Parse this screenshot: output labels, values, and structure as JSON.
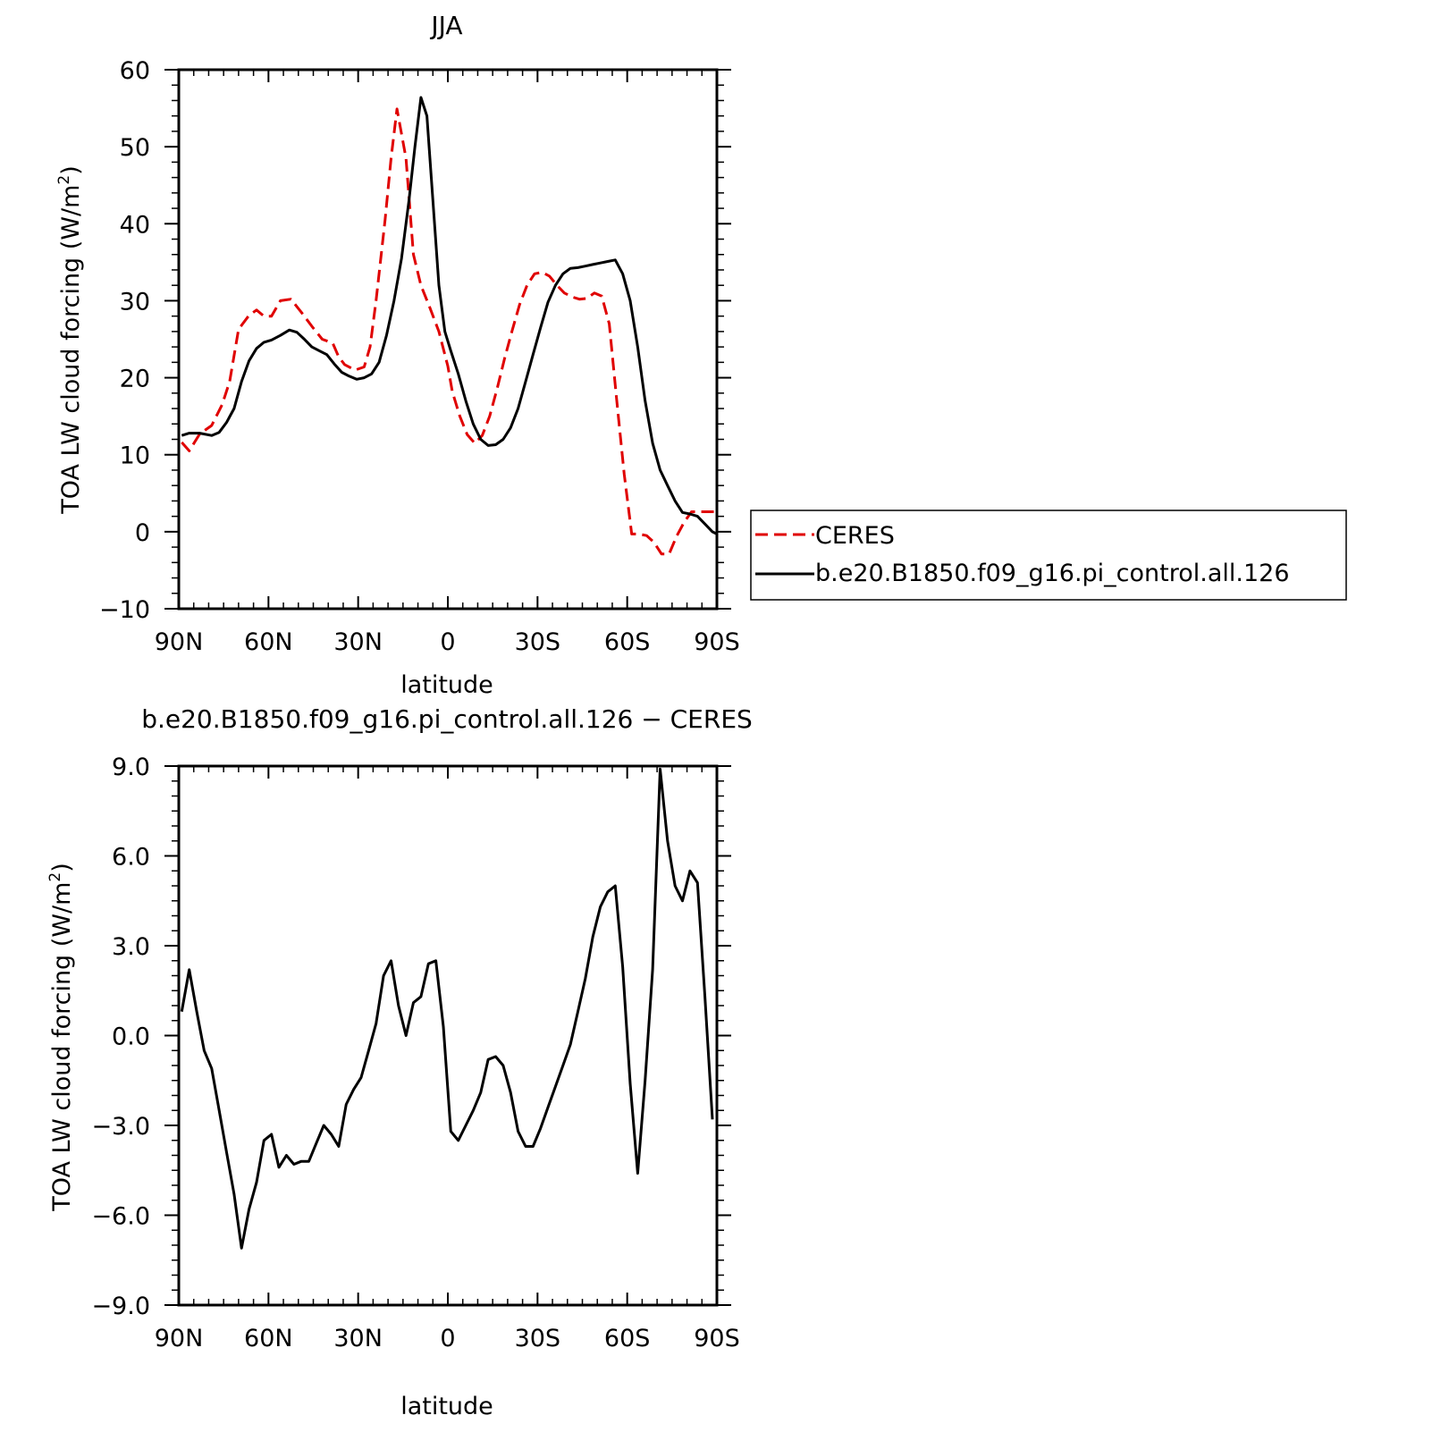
{
  "chart_data": [
    {
      "type": "line",
      "title": "JJA",
      "xlabel": "latitude",
      "ylabel": "TOA LW cloud forcing (W/m²)",
      "ylabel_parts": {
        "prefix": "TOA LW cloud forcing (W/m",
        "sup": "2",
        "suffix": ")"
      },
      "xlim": [
        90,
        -90
      ],
      "ylim": [
        -10,
        60
      ],
      "xticks": [
        90,
        60,
        30,
        0,
        -30,
        -60,
        -90
      ],
      "xticklabels": [
        "90N",
        "60N",
        "30N",
        "0",
        "30S",
        "60S",
        "90S"
      ],
      "yticks": [
        -10,
        0,
        10,
        20,
        30,
        40,
        50,
        60
      ],
      "yticklabels": [
        "−10",
        "0",
        "10",
        "20",
        "30",
        "40",
        "50",
        "60"
      ],
      "legend": {
        "placement": "right, outside plot"
      },
      "series": [
        {
          "name": "CERES",
          "color": "#e00000",
          "dash": "dashed",
          "x": [
            89,
            86.5,
            83,
            79,
            75.5,
            73,
            70,
            66.5,
            64,
            61.5,
            59,
            56,
            52.5,
            49,
            45.5,
            42,
            38.5,
            36.5,
            34.5,
            31,
            28,
            26,
            24,
            21,
            19,
            17,
            14,
            11.5,
            9,
            6,
            3,
            0,
            -1.5,
            -4,
            -6.5,
            -9,
            -11.5,
            -14,
            -16.5,
            -19,
            -21.5,
            -24,
            -26.5,
            -29,
            -31.5,
            -34,
            -36.5,
            -39,
            -41.5,
            -44,
            -46.5,
            -49,
            -51.5,
            -54,
            -56.5,
            -59,
            -61.5,
            -64,
            -66.5,
            -69,
            -71.5,
            -74,
            -76.5,
            -79,
            -81.5,
            -84,
            -86.5,
            -89
          ],
          "y": [
            11.6,
            10.5,
            12.7,
            13.8,
            16.5,
            19.5,
            26.3,
            28.1,
            28.8,
            28,
            28,
            30,
            30.2,
            28.5,
            26.7,
            25,
            24.5,
            22.7,
            21.7,
            21,
            21.4,
            24,
            30,
            40.5,
            48.5,
            54.9,
            48.5,
            36,
            32,
            29.1,
            26,
            21.5,
            18.2,
            15,
            12.6,
            11.5,
            12.5,
            15,
            18.6,
            22.5,
            26.1,
            29.5,
            32,
            33.5,
            33.7,
            33.2,
            32,
            31,
            30.5,
            30.2,
            30.3,
            31,
            30.6,
            27,
            17,
            7.5,
            -0.3,
            -0.3,
            -0.5,
            -1.4,
            -2.9,
            -2.9,
            -0.6,
            1.2,
            2.6,
            2.6,
            2.6,
            2.6
          ]
        },
        {
          "name": "b.e20.B1850.f09_g16.pi_control.all.126",
          "color": "#000000",
          "dash": "solid",
          "x": [
            89,
            86.5,
            83,
            79,
            76.5,
            74,
            71.5,
            69,
            66.5,
            64,
            61.5,
            59,
            56,
            53,
            50.5,
            48,
            45.5,
            43,
            40.5,
            38,
            35.5,
            33,
            30.5,
            28,
            25.5,
            23,
            20.5,
            18,
            15.5,
            13,
            11,
            9,
            7,
            5,
            3,
            1,
            -1,
            -3.5,
            -6,
            -8.5,
            -11,
            -13.5,
            -16,
            -18.5,
            -21,
            -23.5,
            -26,
            -28.5,
            -31,
            -33.5,
            -36,
            -38.5,
            -41,
            -43.5,
            -46,
            -48.5,
            -51,
            -53.5,
            -56,
            -58.5,
            -61,
            -63.5,
            -66,
            -68.5,
            -71,
            -73.5,
            -76,
            -78.5,
            -81,
            -83.5,
            -86,
            -88.5,
            -90
          ],
          "y": [
            12.5,
            12.8,
            12.8,
            12.5,
            12.9,
            14.2,
            16,
            19.5,
            22.2,
            23.8,
            24.6,
            24.9,
            25.5,
            26.2,
            25.9,
            25,
            24,
            23.5,
            23,
            21.8,
            20.7,
            20.2,
            19.8,
            20,
            20.5,
            22,
            25.5,
            30,
            35.5,
            43,
            50,
            56.4,
            54,
            43,
            32,
            26,
            23.5,
            20.5,
            17,
            14,
            12,
            11.2,
            11.3,
            12,
            13.5,
            16,
            19.5,
            23,
            26.5,
            29.8,
            32,
            33.5,
            34.2,
            34.3,
            34.5,
            34.7,
            34.9,
            35.1,
            35.3,
            33.5,
            30,
            24,
            17,
            11.5,
            8,
            6,
            4,
            2.5,
            2.3,
            2,
            1,
            0,
            -0.3
          ]
        }
      ]
    },
    {
      "type": "line",
      "title": "b.e20.B1850.f09_g16.pi_control.all.126 − CERES",
      "xlabel": "latitude",
      "ylabel": "TOA LW cloud forcing (W/m²)",
      "ylabel_parts": {
        "prefix": "TOA LW cloud forcing (W/m",
        "sup": "2",
        "suffix": ")"
      },
      "xlim": [
        90,
        -90
      ],
      "ylim": [
        -9,
        9
      ],
      "xticks": [
        90,
        60,
        30,
        0,
        -30,
        -60,
        -90
      ],
      "xticklabels": [
        "90N",
        "60N",
        "30N",
        "0",
        "30S",
        "60S",
        "90S"
      ],
      "yticks": [
        -9,
        -6,
        -3,
        0,
        3,
        6,
        9
      ],
      "yticklabels": [
        "−9.0",
        "−6.0",
        "−3.0",
        "0.0",
        "3.0",
        "6.0",
        "9.0"
      ],
      "series": [
        {
          "color": "#000000",
          "dash": "solid",
          "x": [
            89,
            86.5,
            84,
            81.5,
            79,
            76.5,
            74,
            71.5,
            69,
            66.5,
            64,
            61.5,
            59,
            56.5,
            54,
            51.5,
            49,
            46.5,
            44,
            41.5,
            39,
            36.5,
            34,
            31.5,
            29,
            26.5,
            24,
            21.5,
            19,
            16.5,
            14,
            11.5,
            9,
            6.5,
            4,
            1.5,
            -1,
            -3.5,
            -6,
            -8.5,
            -11,
            -13.5,
            -16,
            -18.5,
            -21,
            -23.5,
            -26,
            -28.5,
            -31,
            -33.5,
            -36,
            -38.5,
            -41,
            -43.5,
            -46,
            -48.5,
            -51,
            -53.5,
            -56,
            -58.5,
            -61,
            -63.5,
            -66,
            -68.5,
            -71,
            -73.5,
            -76,
            -78.5,
            -81,
            -83.5,
            -86,
            -88.5
          ],
          "y": [
            0.8,
            2.2,
            0.8,
            -0.5,
            -1.1,
            -2.5,
            -3.9,
            -5.3,
            -7.1,
            -5.8,
            -4.9,
            -3.5,
            -3.3,
            -4.4,
            -4.0,
            -4.3,
            -4.2,
            -4.2,
            -3.6,
            -3.0,
            -3.3,
            -3.7,
            -2.3,
            -1.8,
            -1.4,
            -0.5,
            0.4,
            2.0,
            2.5,
            1.0,
            0.0,
            1.1,
            1.3,
            2.4,
            2.5,
            0.3,
            -3.2,
            -3.5,
            -3.0,
            -2.5,
            -1.9,
            -0.8,
            -0.7,
            -1.0,
            -1.9,
            -3.2,
            -3.7,
            -3.7,
            -3.1,
            -2.4,
            -1.7,
            -1.0,
            -0.3,
            0.8,
            1.9,
            3.3,
            4.3,
            4.8,
            5.0,
            2.3,
            -1.6,
            -4.6,
            -1.5,
            2.2,
            8.9,
            6.5,
            5.0,
            4.5,
            5.5,
            5.1,
            1.3,
            -2.8
          ]
        }
      ]
    }
  ]
}
